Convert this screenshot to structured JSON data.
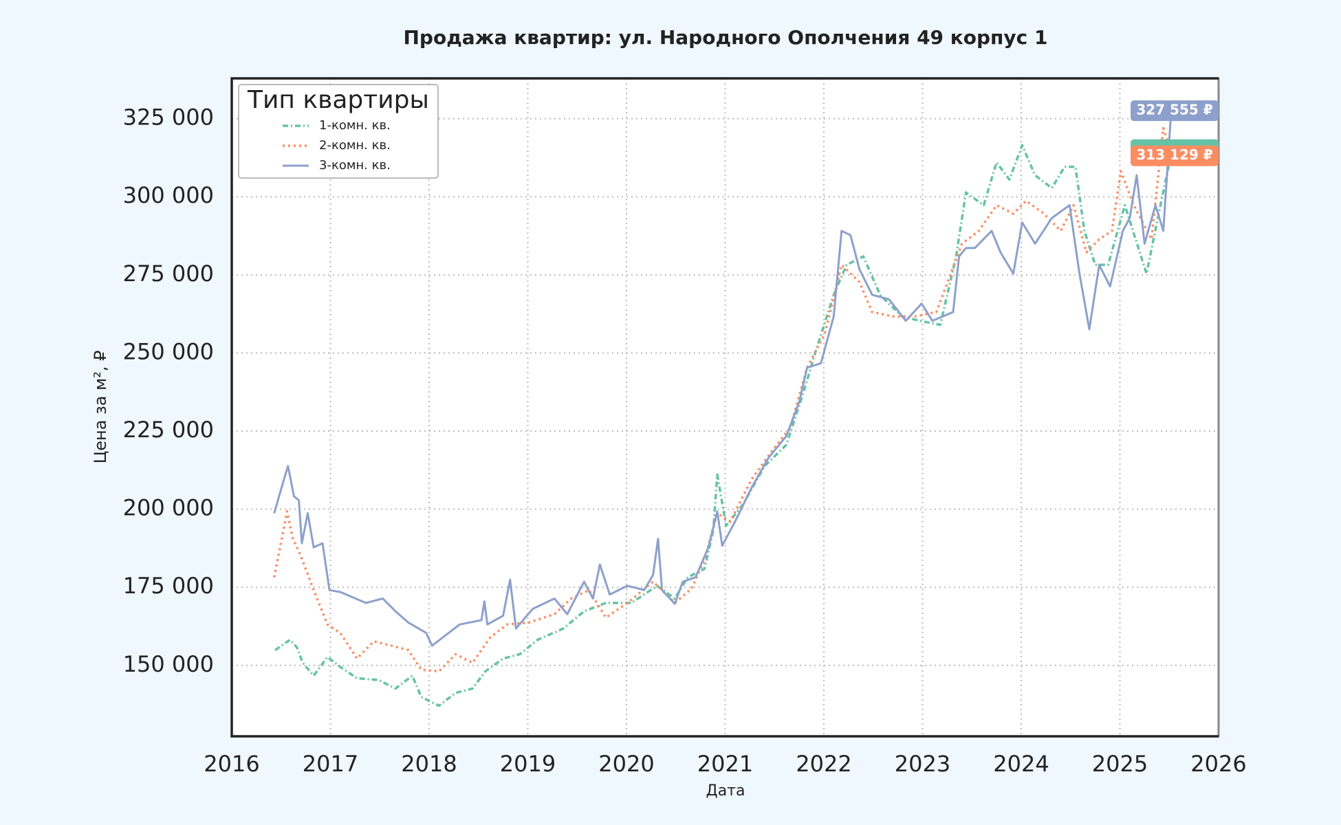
{
  "chart_data": {
    "type": "line",
    "title": "Продажа квартир: ул. Народного Ополчения 49 корпус 1",
    "x_label": "Дата",
    "y_label": "Цена за м², ₽",
    "xlim": [
      2016,
      2026
    ],
    "xticks": [
      2016,
      2017,
      2018,
      2019,
      2020,
      2021,
      2022,
      2023,
      2024,
      2025,
      2026
    ],
    "ylim": [
      127300,
      337900
    ],
    "yticks": [
      {
        "value": 150000,
        "label": "150 000"
      },
      {
        "value": 175000,
        "label": "175 000"
      },
      {
        "value": 200000,
        "label": "200 000"
      },
      {
        "value": 225000,
        "label": "225 000"
      },
      {
        "value": 250000,
        "label": "250 000"
      },
      {
        "value": 275000,
        "label": "275 000"
      },
      {
        "value": 300000,
        "label": "300 000"
      },
      {
        "value": 325000,
        "label": "325 000"
      }
    ],
    "grid": true,
    "legend": "upper left",
    "legend_title": "Тип квартиры",
    "series": [
      {
        "name": "1-комн. кв.",
        "color": "#66c2a5",
        "linestyle": "dashdot",
        "x": [
          2016.44,
          2016.59,
          2016.66,
          2016.72,
          2016.83,
          2016.97,
          2017.1,
          2017.27,
          2017.49,
          2017.66,
          2017.83,
          2017.92,
          2018.1,
          2018.27,
          2018.44,
          2018.57,
          2018.75,
          2018.92,
          2019.1,
          2019.36,
          2019.57,
          2019.79,
          2020.05,
          2020.31,
          2020.49,
          2020.62,
          2020.79,
          2020.88,
          2020.92,
          2021.01,
          2021.18,
          2021.4,
          2021.62,
          2021.79,
          2021.92,
          2022.1,
          2022.23,
          2022.4,
          2022.57,
          2022.79,
          2022.97,
          2023.18,
          2023.34,
          2023.44,
          2023.62,
          2023.75,
          2023.88,
          2024.01,
          2024.14,
          2024.31,
          2024.44,
          2024.55,
          2024.64,
          2024.75,
          2024.88,
          2025.05,
          2025.27,
          2025.42,
          2025.53
        ],
        "values": [
          154900,
          158200,
          155800,
          150800,
          146700,
          152700,
          149500,
          145900,
          145300,
          142600,
          146700,
          139900,
          137100,
          141200,
          142600,
          148100,
          152200,
          153600,
          158200,
          161800,
          167300,
          170000,
          170000,
          175500,
          171400,
          178200,
          180900,
          193300,
          211100,
          194700,
          201500,
          213800,
          220600,
          237100,
          250800,
          268600,
          278200,
          280900,
          268600,
          261700,
          260300,
          259000,
          280900,
          301400,
          297300,
          311000,
          305500,
          316500,
          306900,
          302800,
          309600,
          309600,
          289100,
          278200,
          278200,
          297300,
          275400,
          298700,
          315100
        ]
      },
      {
        "name": "2-комн. кв.",
        "color": "#fc8d62",
        "linestyle": "dotted",
        "end_label": "313 129 ₽",
        "x": [
          2016.43,
          2016.49,
          2016.56,
          2016.62,
          2016.7,
          2016.83,
          2016.97,
          2017.1,
          2017.27,
          2017.44,
          2017.62,
          2017.79,
          2017.92,
          2018.1,
          2018.27,
          2018.44,
          2018.62,
          2018.79,
          2019.01,
          2019.27,
          2019.44,
          2019.62,
          2019.79,
          2020.01,
          2020.27,
          2020.49,
          2020.66,
          2020.79,
          2020.92,
          2021.05,
          2021.27,
          2021.49,
          2021.66,
          2021.83,
          2022.01,
          2022.18,
          2022.36,
          2022.49,
          2022.7,
          2022.92,
          2023.14,
          2023.27,
          2023.4,
          2023.57,
          2023.75,
          2023.92,
          2024.05,
          2024.23,
          2024.4,
          2024.53,
          2024.66,
          2024.79,
          2024.92,
          2025.01,
          2025.14,
          2025.32,
          2025.44,
          2025.53
        ],
        "values": [
          178200,
          187800,
          199300,
          190500,
          185000,
          174100,
          163100,
          160400,
          152200,
          157700,
          156300,
          154900,
          148600,
          148100,
          153600,
          150800,
          159000,
          163100,
          163700,
          166400,
          171400,
          174100,
          165300,
          170000,
          176800,
          170000,
          174600,
          183700,
          198700,
          196000,
          209700,
          219300,
          226100,
          245300,
          256200,
          278200,
          272700,
          263100,
          261700,
          261700,
          263100,
          274000,
          285000,
          289100,
          297300,
          294600,
          298700,
          294600,
          289100,
          297300,
          282200,
          286400,
          289100,
          308200,
          297300,
          286400,
          322000,
          313129
        ]
      },
      {
        "name": "3-комн. кв.",
        "color": "#8da0cb",
        "linestyle": "solid",
        "end_label": "327 555 ₽",
        "x": [
          2016.43,
          2016.53,
          2016.57,
          2016.63,
          2016.68,
          2016.71,
          2016.77,
          2016.83,
          2016.92,
          2016.99,
          2017.1,
          2017.36,
          2017.53,
          2017.66,
          2017.79,
          2017.97,
          2018.03,
          2018.14,
          2018.31,
          2018.53,
          2018.56,
          2018.59,
          2018.75,
          2018.82,
          2018.88,
          2019.05,
          2019.27,
          2019.4,
          2019.57,
          2019.66,
          2019.73,
          2019.83,
          2020.01,
          2020.18,
          2020.27,
          2020.32,
          2020.36,
          2020.49,
          2020.57,
          2020.7,
          2020.83,
          2020.92,
          2020.97,
          2021.1,
          2021.27,
          2021.44,
          2021.62,
          2021.75,
          2021.83,
          2021.97,
          2022.1,
          2022.18,
          2022.27,
          2022.36,
          2022.49,
          2022.66,
          2022.83,
          2022.99,
          2023.1,
          2023.31,
          2023.37,
          2023.44,
          2023.53,
          2023.7,
          2023.79,
          2023.92,
          2024.01,
          2024.14,
          2024.31,
          2024.49,
          2024.59,
          2024.69,
          2024.79,
          2024.9,
          2025.03,
          2025.1,
          2025.17,
          2025.25,
          2025.36,
          2025.44,
          2025.52
        ],
        "values": [
          198700,
          209700,
          213800,
          204200,
          202800,
          189100,
          198700,
          187800,
          189100,
          174100,
          173500,
          170000,
          171400,
          167300,
          163700,
          160400,
          156300,
          159000,
          163100,
          164500,
          170500,
          163100,
          165900,
          177400,
          161800,
          168100,
          171400,
          166400,
          176800,
          171400,
          182300,
          172700,
          175500,
          174100,
          179000,
          190500,
          174100,
          169700,
          176800,
          178200,
          187800,
          199300,
          188300,
          196000,
          207000,
          216500,
          223400,
          234300,
          245300,
          246700,
          261700,
          289100,
          287700,
          276800,
          268600,
          267200,
          260300,
          265800,
          260300,
          263100,
          280900,
          283600,
          283600,
          289100,
          282200,
          275400,
          291800,
          285000,
          293200,
          297300,
          275400,
          257600,
          278200,
          271300,
          289100,
          293200,
          306900,
          285000,
          297300,
          289100,
          327555
        ]
      }
    ]
  }
}
